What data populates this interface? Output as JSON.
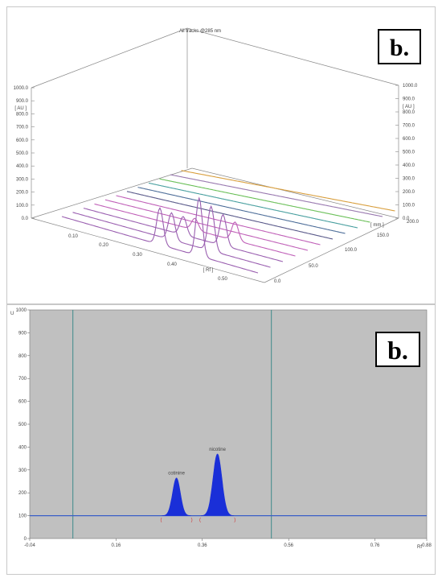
{
  "chart_data": [
    {
      "type": "line",
      "title": "All tracks @285 nm",
      "panel_label": "b.",
      "zaxis_unit": "[ AU ]",
      "z_ticks": [
        "1000.0",
        "900.0",
        "800.0",
        "700.0",
        "600.0",
        "500.0",
        "400.0",
        "300.0",
        "200.0",
        "100.0",
        "0.0"
      ],
      "rf_unit": "[ Rf ]",
      "rf_ticks": [
        "0.10",
        "0.20",
        "0.30",
        "0.40",
        "0.50"
      ],
      "track_unit": "[ mm ]",
      "track_ticks": [
        "200.0",
        "150.0",
        "100.0",
        "50.0",
        "0.0"
      ],
      "zlim": [
        0,
        1000
      ],
      "series": [
        {
          "color": "#9a5fb0",
          "peaks": [
            {
              "rf": 0.3,
              "au": 190
            },
            {
              "rf": 0.42,
              "au": 300
            }
          ]
        },
        {
          "color": "#9a5fb0",
          "peaks": [
            {
              "rf": 0.3,
              "au": 140
            },
            {
              "rf": 0.42,
              "au": 230
            }
          ]
        },
        {
          "color": "#9a5fb0",
          "peaks": [
            {
              "rf": 0.3,
              "au": 95
            },
            {
              "rf": 0.42,
              "au": 160
            }
          ]
        },
        {
          "color": "#c060b8",
          "peaks": [
            {
              "rf": 0.3,
              "au": 60
            },
            {
              "rf": 0.42,
              "au": 95
            }
          ]
        },
        {
          "color": "#c060b8",
          "peaks": []
        },
        {
          "color": "#c060b8",
          "peaks": []
        },
        {
          "color": "#5a5a8a",
          "peaks": []
        },
        {
          "color": "#4f6f9a",
          "peaks": []
        },
        {
          "color": "#4aa0a0",
          "peaks": []
        },
        {
          "color": "#6cc05a",
          "peaks": []
        },
        {
          "color": "#9a7ab0",
          "peaks": []
        },
        {
          "color": "#d9a040",
          "peaks": []
        }
      ]
    },
    {
      "type": "area",
      "panel_label": "b.",
      "y_unit": "U",
      "x_unit": "Rf",
      "xlim": [
        -0.04,
        0.88
      ],
      "ylim": [
        0,
        1000
      ],
      "y_ticks": [
        0,
        100,
        200,
        300,
        400,
        500,
        600,
        700,
        800,
        900,
        1000
      ],
      "x_ticks": [
        "-0.04",
        "0.16",
        "0.36",
        "0.56",
        "0.76",
        "0.88"
      ],
      "baseline": 100,
      "vertical_lines": [
        0.06,
        0.52
      ],
      "peaks": [
        {
          "name": "cotinine",
          "rf": 0.3,
          "height": 265,
          "width": 0.014
        },
        {
          "name": "nicotine",
          "rf": 0.395,
          "height": 370,
          "width": 0.016
        }
      ]
    }
  ]
}
